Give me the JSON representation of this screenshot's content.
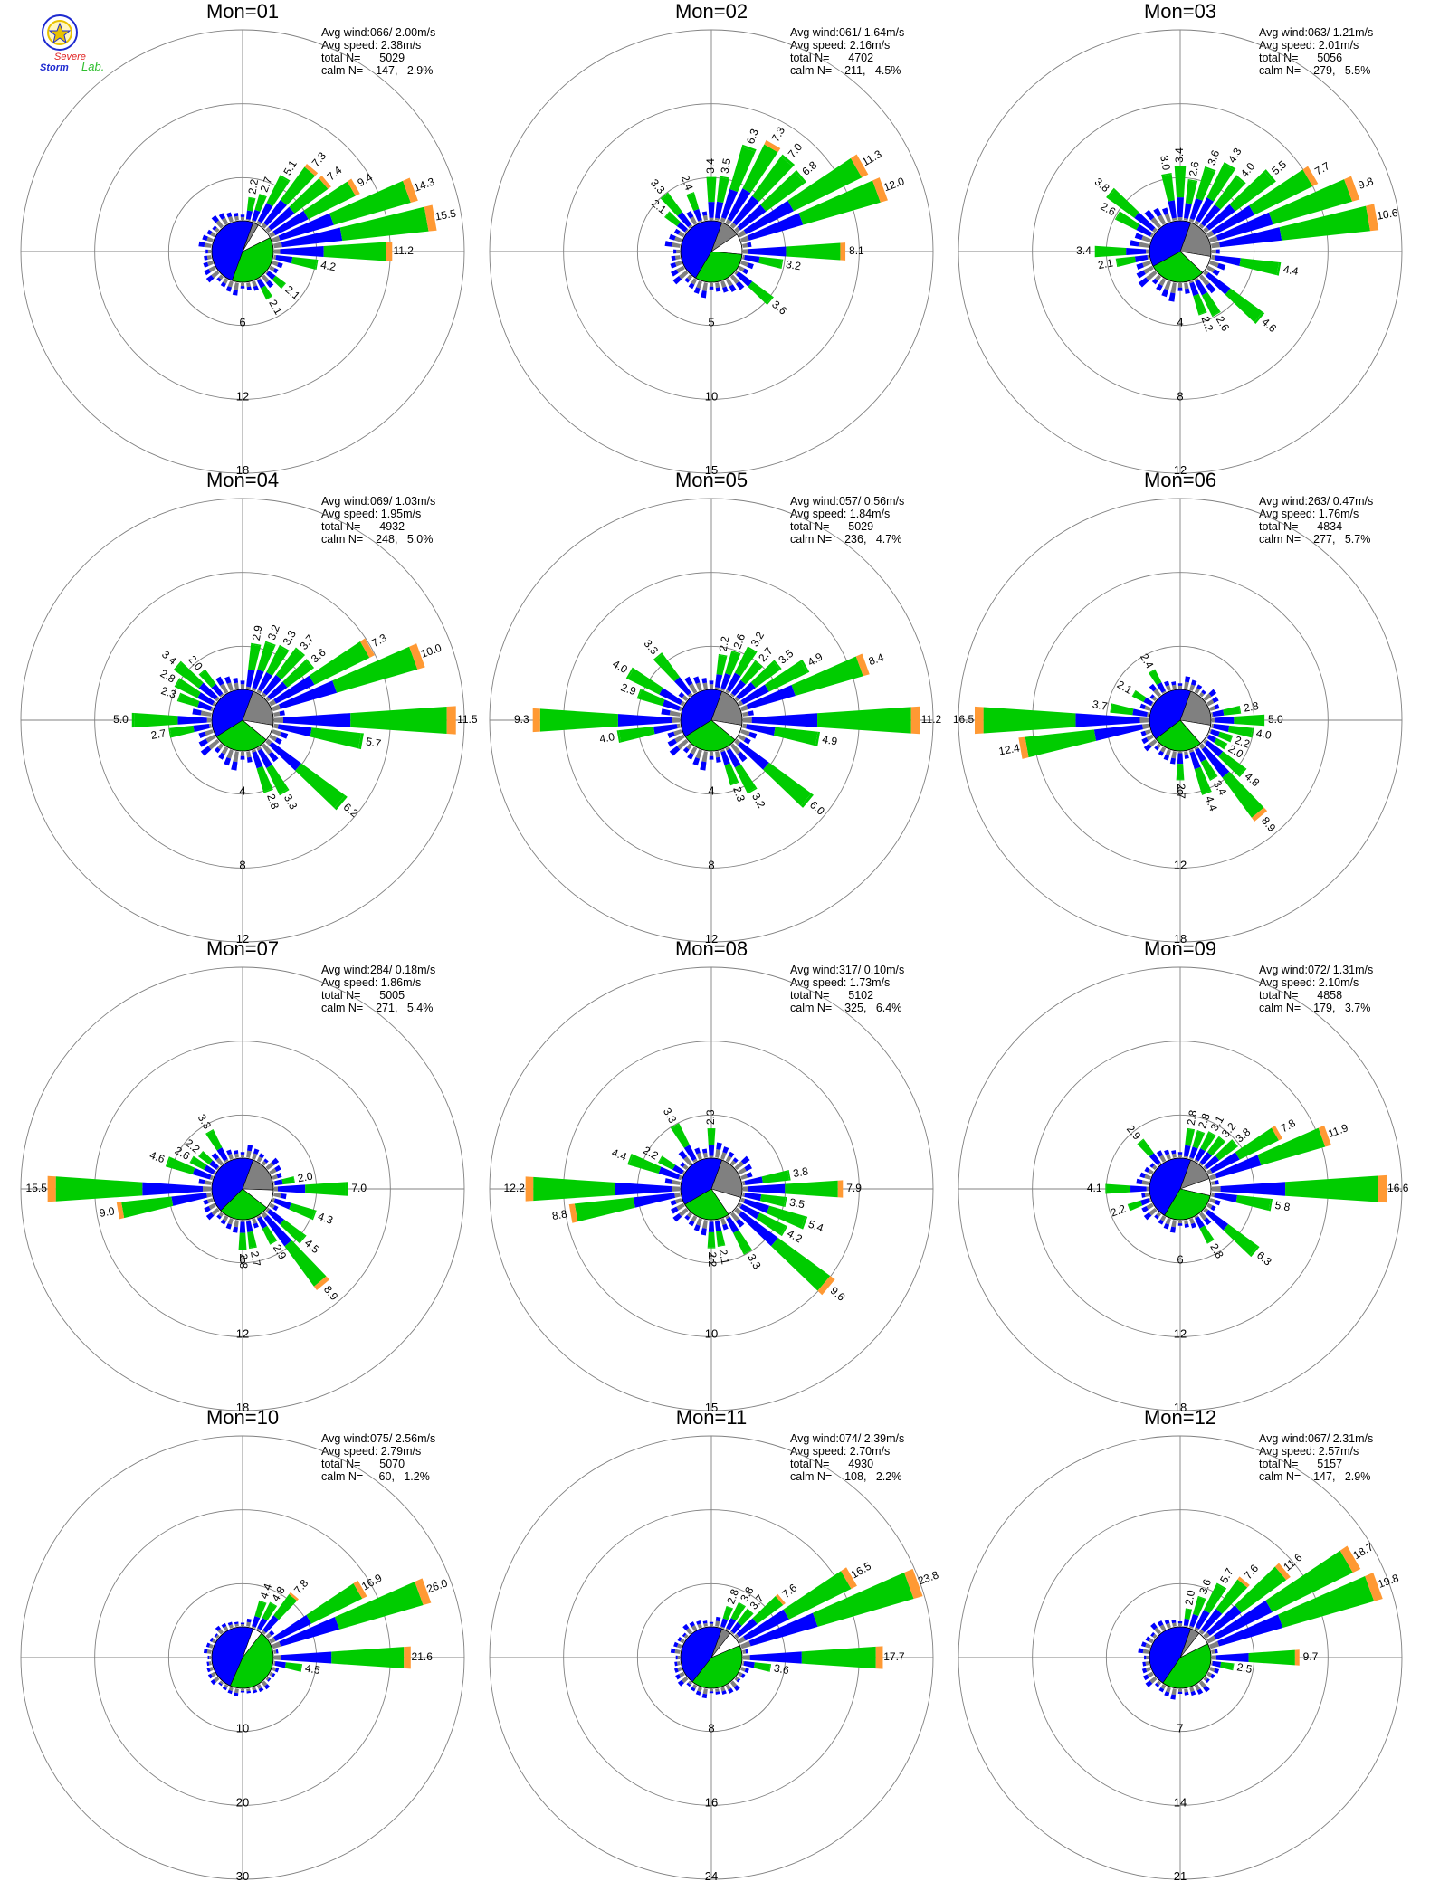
{
  "logo": {
    "line1": "Severe",
    "line2": "Storm",
    "line3": "Lab.",
    "colors": {
      "blue": "#1e2ad0",
      "red": "#e02020",
      "green": "#2fbf2f",
      "gold": "#e8c200"
    }
  },
  "colors": {
    "speed_1": "#808080",
    "speed_2": "#0000ff",
    "speed_3": "#00cc00",
    "speed_4": "#ff9933",
    "calm_fill": "#ffffff",
    "grid": "#808080"
  },
  "chart_data": [
    {
      "type": "polar-bar",
      "title": "Mon=01",
      "stats": [
        "Avg wind:066/ 2.00m/s",
        "Avg speed: 2.38m/s",
        "total N=      5029",
        "calm N=    147,   2.9%"
      ],
      "ring_labels": [
        "6",
        "12",
        "18"
      ],
      "rmax": 18,
      "pie": {
        "gray": 0.03,
        "blue": 0.44,
        "green": 0.38,
        "calm": 0.03
      },
      "petals": [
        {
          "dir": 10,
          "val": 2.2
        },
        {
          "dir": 20,
          "val": 2.7
        },
        {
          "dir": 30,
          "val": 5.1
        },
        {
          "dir": 40,
          "val": 7.3
        },
        {
          "dir": 50,
          "val": 7.4
        },
        {
          "dir": 60,
          "val": 9.4
        },
        {
          "dir": 70,
          "val": 14.3
        },
        {
          "dir": 80,
          "val": 15.5
        },
        {
          "dir": 90,
          "val": 11.2
        },
        {
          "dir": 100,
          "val": 4.2
        },
        {
          "dir": 130,
          "val": 2.1
        },
        {
          "dir": 150,
          "val": 2.1
        }
      ]
    },
    {
      "type": "polar-bar",
      "title": "Mon=02",
      "stats": [
        "Avg wind:061/ 1.64m/s",
        "Avg speed: 2.16m/s",
        "total N=      4702",
        "calm N=    211,   4.5%"
      ],
      "ring_labels": [
        "5",
        "10",
        "15"
      ],
      "rmax": 15,
      "pie": {
        "gray": 0.1,
        "blue": 0.4,
        "green": 0.32,
        "calm": 0.04
      },
      "petals": [
        {
          "dir": 310,
          "val": 2.1
        },
        {
          "dir": 320,
          "val": 3.3
        },
        {
          "dir": 340,
          "val": 2.4
        },
        {
          "dir": 0,
          "val": 3.4
        },
        {
          "dir": 10,
          "val": 3.5
        },
        {
          "dir": 20,
          "val": 6.3
        },
        {
          "dir": 30,
          "val": 7.3
        },
        {
          "dir": 40,
          "val": 7.0
        },
        {
          "dir": 50,
          "val": 6.8
        },
        {
          "dir": 60,
          "val": 11.3
        },
        {
          "dir": 70,
          "val": 12.0
        },
        {
          "dir": 90,
          "val": 8.1
        },
        {
          "dir": 100,
          "val": 3.2
        },
        {
          "dir": 130,
          "val": 3.6
        }
      ]
    },
    {
      "type": "polar-bar",
      "title": "Mon=03",
      "stats": [
        "Avg wind:063/ 1.21m/s",
        "Avg speed: 2.01m/s",
        "total N=      5056",
        "calm N=    279,   5.5%"
      ],
      "ring_labels": [
        "4",
        "8",
        "12"
      ],
      "rmax": 12,
      "pie": {
        "gray": 0.22,
        "blue": 0.34,
        "green": 0.3,
        "calm": 0.05
      },
      "petals": [
        {
          "dir": 300,
          "val": 2.6
        },
        {
          "dir": 310,
          "val": 3.8
        },
        {
          "dir": 350,
          "val": 3.0
        },
        {
          "dir": 0,
          "val": 3.4
        },
        {
          "dir": 10,
          "val": 2.6
        },
        {
          "dir": 20,
          "val": 3.6
        },
        {
          "dir": 30,
          "val": 4.3
        },
        {
          "dir": 40,
          "val": 4.0
        },
        {
          "dir": 50,
          "val": 5.5
        },
        {
          "dir": 60,
          "val": 7.7
        },
        {
          "dir": 70,
          "val": 9.8
        },
        {
          "dir": 80,
          "val": 10.6
        },
        {
          "dir": 100,
          "val": 4.4
        },
        {
          "dir": 130,
          "val": 4.6
        },
        {
          "dir": 150,
          "val": 2.6
        },
        {
          "dir": 160,
          "val": 2.2
        },
        {
          "dir": 260,
          "val": 2.1
        },
        {
          "dir": 270,
          "val": 3.4
        }
      ]
    },
    {
      "type": "polar-bar",
      "title": "Mon=04",
      "stats": [
        "Avg wind:069/ 1.03m/s",
        "Avg speed: 1.95m/s",
        "total N=      4932",
        "calm N=    248,   5.0%"
      ],
      "ring_labels": [
        "4",
        "8",
        "12"
      ],
      "rmax": 12,
      "pie": {
        "gray": 0.22,
        "blue": 0.36,
        "green": 0.3,
        "calm": 0.05
      },
      "petals": [
        {
          "dir": 290,
          "val": 2.3
        },
        {
          "dir": 300,
          "val": 2.8
        },
        {
          "dir": 310,
          "val": 3.4
        },
        {
          "dir": 320,
          "val": 2.0
        },
        {
          "dir": 10,
          "val": 2.9
        },
        {
          "dir": 20,
          "val": 3.2
        },
        {
          "dir": 30,
          "val": 3.3
        },
        {
          "dir": 40,
          "val": 3.7
        },
        {
          "dir": 50,
          "val": 3.6
        },
        {
          "dir": 60,
          "val": 7.3
        },
        {
          "dir": 70,
          "val": 10.0
        },
        {
          "dir": 90,
          "val": 11.5
        },
        {
          "dir": 100,
          "val": 5.7
        },
        {
          "dir": 130,
          "val": 6.2
        },
        {
          "dir": 150,
          "val": 3.3
        },
        {
          "dir": 160,
          "val": 2.8
        },
        {
          "dir": 260,
          "val": 2.7
        },
        {
          "dir": 270,
          "val": 5.0
        }
      ]
    },
    {
      "type": "polar-bar",
      "title": "Mon=05",
      "stats": [
        "Avg wind:057/ 0.56m/s",
        "Avg speed: 1.84m/s",
        "total N=      5029",
        "calm N=    236,   4.7%"
      ],
      "ring_labels": [
        "4",
        "8",
        "12"
      ],
      "rmax": 12,
      "pie": {
        "gray": 0.22,
        "blue": 0.36,
        "green": 0.3,
        "calm": 0.05
      },
      "petals": [
        {
          "dir": 290,
          "val": 2.9
        },
        {
          "dir": 300,
          "val": 4.0
        },
        {
          "dir": 320,
          "val": 3.3
        },
        {
          "dir": 10,
          "val": 2.2
        },
        {
          "dir": 20,
          "val": 2.6
        },
        {
          "dir": 30,
          "val": 3.2
        },
        {
          "dir": 40,
          "val": 2.7
        },
        {
          "dir": 50,
          "val": 3.5
        },
        {
          "dir": 60,
          "val": 4.9
        },
        {
          "dir": 70,
          "val": 8.4
        },
        {
          "dir": 90,
          "val": 11.2
        },
        {
          "dir": 100,
          "val": 4.9
        },
        {
          "dir": 130,
          "val": 6.0
        },
        {
          "dir": 150,
          "val": 3.2
        },
        {
          "dir": 160,
          "val": 2.3
        },
        {
          "dir": 260,
          "val": 4.0
        },
        {
          "dir": 270,
          "val": 9.3
        }
      ]
    },
    {
      "type": "polar-bar",
      "title": "Mon=06",
      "stats": [
        "Avg wind:263/ 0.47m/s",
        "Avg speed: 1.76m/s",
        "total N=      4834",
        "calm N=    277,   5.7%"
      ],
      "ring_labels": [
        "6",
        "12",
        "18"
      ],
      "rmax": 18,
      "pie": {
        "gray": 0.22,
        "blue": 0.36,
        "green": 0.26,
        "calm": 0.06
      },
      "petals": [
        {
          "dir": 280,
          "val": 3.7
        },
        {
          "dir": 300,
          "val": 2.1
        },
        {
          "dir": 330,
          "val": 2.4
        },
        {
          "dir": 80,
          "val": 2.8
        },
        {
          "dir": 90,
          "val": 5.0
        },
        {
          "dir": 100,
          "val": 4.0
        },
        {
          "dir": 110,
          "val": 2.2
        },
        {
          "dir": 120,
          "val": 2.0
        },
        {
          "dir": 130,
          "val": 4.8
        },
        {
          "dir": 140,
          "val": 8.9
        },
        {
          "dir": 150,
          "val": 3.4
        },
        {
          "dir": 160,
          "val": 4.4
        },
        {
          "dir": 180,
          "val": 2.7
        },
        {
          "dir": 260,
          "val": 12.4
        },
        {
          "dir": 270,
          "val": 16.5
        }
      ]
    },
    {
      "type": "polar-bar",
      "title": "Mon=07",
      "stats": [
        "Avg wind:284/ 0.18m/s",
        "Avg speed: 1.86m/s",
        "total N=      5005",
        "calm N=    271,   5.4%"
      ],
      "ring_labels": [
        "6",
        "12",
        "18"
      ],
      "rmax": 18,
      "pie": {
        "gray": 0.2,
        "blue": 0.38,
        "green": 0.27,
        "calm": 0.05
      },
      "petals": [
        {
          "dir": 290,
          "val": 4.6
        },
        {
          "dir": 300,
          "val": 2.6
        },
        {
          "dir": 310,
          "val": 2.2
        },
        {
          "dir": 330,
          "val": 3.3
        },
        {
          "dir": 80,
          "val": 2.0
        },
        {
          "dir": 90,
          "val": 7.0
        },
        {
          "dir": 110,
          "val": 4.3
        },
        {
          "dir": 130,
          "val": 4.5
        },
        {
          "dir": 140,
          "val": 8.9
        },
        {
          "dir": 150,
          "val": 2.9
        },
        {
          "dir": 170,
          "val": 2.7
        },
        {
          "dir": 180,
          "val": 2.8
        },
        {
          "dir": 260,
          "val": 9.0
        },
        {
          "dir": 270,
          "val": 15.5
        }
      ]
    },
    {
      "type": "polar-bar",
      "title": "Mon=08",
      "stats": [
        "Avg wind:317/ 0.10m/s",
        "Avg speed: 1.73m/s",
        "total N=      5102",
        "calm N=    325,   6.4%"
      ],
      "ring_labels": [
        "5",
        "10",
        "15"
      ],
      "rmax": 15,
      "pie": {
        "gray": 0.24,
        "blue": 0.34,
        "green": 0.26,
        "calm": 0.06
      },
      "petals": [
        {
          "dir": 290,
          "val": 4.4
        },
        {
          "dir": 300,
          "val": 2.2
        },
        {
          "dir": 330,
          "val": 3.3
        },
        {
          "dir": 0,
          "val": 2.3
        },
        {
          "dir": 80,
          "val": 3.8
        },
        {
          "dir": 90,
          "val": 7.9
        },
        {
          "dir": 100,
          "val": 3.5
        },
        {
          "dir": 110,
          "val": 5.4
        },
        {
          "dir": 120,
          "val": 4.2
        },
        {
          "dir": 130,
          "val": 9.6
        },
        {
          "dir": 150,
          "val": 3.3
        },
        {
          "dir": 170,
          "val": 2.1
        },
        {
          "dir": 180,
          "val": 2.2
        },
        {
          "dir": 260,
          "val": 8.8
        },
        {
          "dir": 270,
          "val": 12.2
        }
      ]
    },
    {
      "type": "polar-bar",
      "title": "Mon=09",
      "stats": [
        "Avg wind:072/ 1.31m/s",
        "Avg speed: 2.10m/s",
        "total N=      4858",
        "calm N=    179,   3.7%"
      ],
      "ring_labels": [
        "6",
        "12",
        "18"
      ],
      "rmax": 18,
      "pie": {
        "gray": 0.14,
        "blue": 0.42,
        "green": 0.3,
        "calm": 0.04
      },
      "petals": [
        {
          "dir": 320,
          "val": 2.9
        },
        {
          "dir": 10,
          "val": 2.8
        },
        {
          "dir": 20,
          "val": 2.8
        },
        {
          "dir": 30,
          "val": 3.1
        },
        {
          "dir": 40,
          "val": 3.2
        },
        {
          "dir": 50,
          "val": 3.8
        },
        {
          "dir": 60,
          "val": 7.8
        },
        {
          "dir": 70,
          "val": 11.9
        },
        {
          "dir": 90,
          "val": 16.6
        },
        {
          "dir": 100,
          "val": 5.8
        },
        {
          "dir": 130,
          "val": 6.3
        },
        {
          "dir": 150,
          "val": 2.8
        },
        {
          "dir": 250,
          "val": 2.2
        },
        {
          "dir": 270,
          "val": 4.1
        }
      ]
    },
    {
      "type": "polar-bar",
      "title": "Mon=10",
      "stats": [
        "Avg wind:075/ 2.56m/s",
        "Avg speed: 2.79m/s",
        "total N=      5070",
        "calm N=     60,   1.2%"
      ],
      "ring_labels": [
        "10",
        "20",
        "30"
      ],
      "rmax": 30,
      "pie": {
        "gray": 0.0,
        "blue": 0.46,
        "green": 0.46,
        "calm": 0.02
      },
      "petals": [
        {
          "dir": 20,
          "val": 4.4
        },
        {
          "dir": 30,
          "val": 4.8
        },
        {
          "dir": 40,
          "val": 7.8
        },
        {
          "dir": 60,
          "val": 16.9
        },
        {
          "dir": 70,
          "val": 26.0
        },
        {
          "dir": 90,
          "val": 21.6
        },
        {
          "dir": 100,
          "val": 4.5
        }
      ]
    },
    {
      "type": "polar-bar",
      "title": "Mon=11",
      "stats": [
        "Avg wind:074/ 2.39m/s",
        "Avg speed: 2.70m/s",
        "total N=      4930",
        "calm N=    108,   2.2%"
      ],
      "ring_labels": [
        "8",
        "16",
        "24"
      ],
      "rmax": 24,
      "pie": {
        "gray": 0.05,
        "blue": 0.4,
        "green": 0.42,
        "calm": 0.03
      },
      "petals": [
        {
          "dir": 20,
          "val": 2.8
        },
        {
          "dir": 30,
          "val": 3.8
        },
        {
          "dir": 40,
          "val": 3.7
        },
        {
          "dir": 50,
          "val": 7.6
        },
        {
          "dir": 60,
          "val": 16.5
        },
        {
          "dir": 70,
          "val": 23.8
        },
        {
          "dir": 90,
          "val": 17.7
        },
        {
          "dir": 100,
          "val": 3.6
        }
      ]
    },
    {
      "type": "polar-bar",
      "title": "Mon=12",
      "stats": [
        "Avg wind:067/ 2.31m/s",
        "Avg speed: 2.57m/s",
        "total N=      5157",
        "calm N=    147,   2.9%"
      ],
      "ring_labels": [
        "7",
        "14",
        "21"
      ],
      "rmax": 21,
      "pie": {
        "gray": 0.05,
        "blue": 0.42,
        "green": 0.42,
        "calm": 0.03
      },
      "petals": [
        {
          "dir": 10,
          "val": 2.0
        },
        {
          "dir": 20,
          "val": 3.6
        },
        {
          "dir": 30,
          "val": 5.7
        },
        {
          "dir": 40,
          "val": 7.6
        },
        {
          "dir": 50,
          "val": 11.6
        },
        {
          "dir": 60,
          "val": 18.7
        },
        {
          "dir": 70,
          "val": 19.8
        },
        {
          "dir": 90,
          "val": 9.7
        },
        {
          "dir": 100,
          "val": 2.5
        }
      ]
    }
  ]
}
